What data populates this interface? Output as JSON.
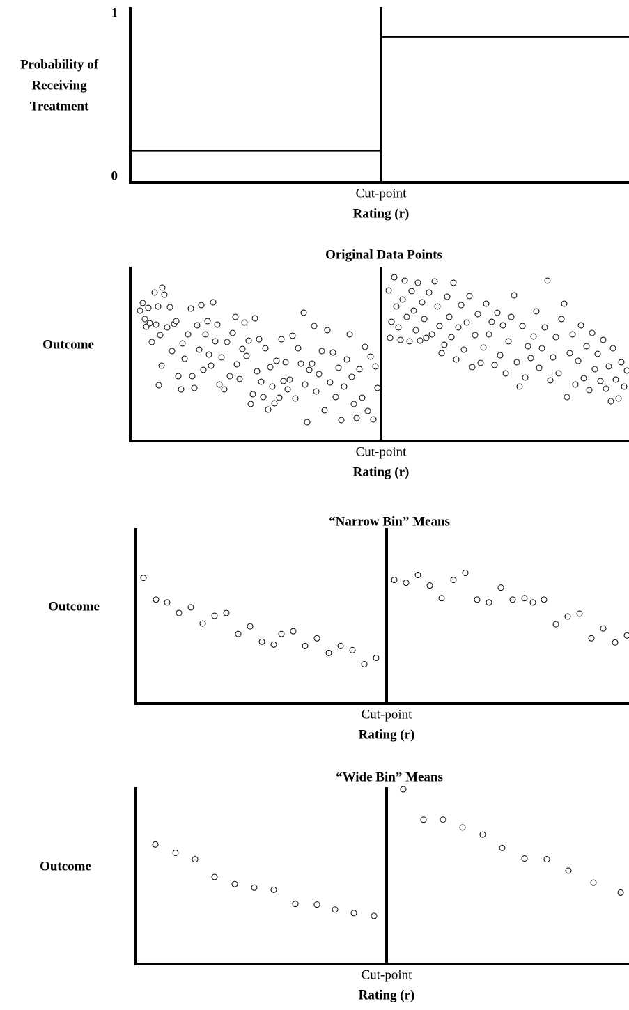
{
  "chart_data": [
    {
      "type": "step",
      "ylabel": [
        "Probability of",
        "Receiving",
        "Treatment"
      ],
      "annotation": "Cut-point",
      "xlabel": "Rating (r)",
      "xlim": [
        0,
        720
      ],
      "cutpoint": 360,
      "ylim": [
        0,
        1
      ],
      "yticks": [
        0,
        1
      ],
      "values": [
        0.18,
        0.83
      ],
      "color": "#000000"
    },
    {
      "type": "scatter",
      "title": "Original Data Points",
      "ylabel": [
        "Outcome"
      ],
      "annotation": "Cut-point",
      "xlabel": "Rating (r)",
      "xlim": [
        0,
        720
      ],
      "cutpoint": 360,
      "ylim": [
        0,
        250
      ],
      "color": "#000000",
      "x": [
        14,
        18,
        21,
        23,
        26,
        28,
        31,
        35,
        37,
        40,
        43,
        46,
        49,
        41,
        45,
        53,
        57,
        60,
        63,
        66,
        69,
        73,
        75,
        78,
        83,
        87,
        89,
        92,
        96,
        99,
        102,
        105,
        108,
        111,
        113,
        116,
        119,
        122,
        125,
        128,
        131,
        135,
        139,
        143,
        147,
        151,
        153,
        157,
        161,
        164,
        167,
        170,
        173,
        176,
        179,
        182,
        185,
        188,
        191,
        194,
        198,
        201,
        204,
        207,
        210,
        214,
        217,
        220,
        223,
        226,
        229,
        233,
        237,
        241,
        245,
        249,
        251,
        254,
        257,
        261,
        264,
        267,
        271,
        275,
        279,
        283,
        287,
        291,
        295,
        299,
        303,
        307,
        311,
        315,
        318,
        321,
        325,
        329,
        333,
        337,
        341,
        345,
        349,
        352,
        355,
        371,
        373,
        375,
        379,
        382,
        385,
        388,
        391,
        394,
        397,
        401,
        404,
        407,
        410,
        413,
        416,
        419,
        422,
        425,
        429,
        433,
        437,
        441,
        444,
        447,
        451,
        455,
        458,
        461,
        464,
        468,
        471,
        475,
        479,
        483,
        487,
        491,
        495,
        499,
        503,
        507,
        511,
        515,
        519,
        523,
        527,
        531,
        535,
        539,
        543,
        547,
        551,
        555,
        559,
        563,
        567,
        571,
        575,
        579,
        583,
        587,
        591,
        595,
        599,
        603,
        607,
        611,
        615,
        619,
        623,
        627,
        631,
        635,
        639,
        643,
        647,
        651,
        655,
        659,
        663,
        667,
        671,
        675,
        679,
        683,
        687,
        690,
        693,
        697,
        701,
        705,
        709,
        713
      ],
      "values": [
        187,
        198,
        175,
        164,
        191,
        169,
        142,
        213,
        167,
        193,
        152,
        220,
        210,
        80,
        108,
        163,
        192,
        129,
        168,
        172,
        93,
        74,
        140,
        118,
        153,
        190,
        93,
        76,
        166,
        131,
        195,
        102,
        153,
        172,
        124,
        108,
        199,
        143,
        167,
        81,
        120,
        74,
        142,
        93,
        155,
        178,
        110,
        89,
        132,
        170,
        122,
        144,
        53,
        67,
        176,
        100,
        146,
        85,
        63,
        133,
        45,
        106,
        78,
        54,
        115,
        62,
        146,
        86,
        113,
        74,
        88,
        151,
        61,
        133,
        111,
        184,
        81,
        27,
        102,
        111,
        165,
        71,
        96,
        129,
        44,
        159,
        84,
        127,
        63,
        105,
        30,
        78,
        117,
        153,
        92,
        53,
        33,
        103,
        62,
        135,
        43,
        121,
        31,
        107,
        76,
        216,
        148,
        171,
        235,
        193,
        163,
        145,
        203,
        230,
        178,
        143,
        215,
        187,
        159,
        227,
        144,
        199,
        175,
        148,
        213,
        153,
        229,
        193,
        165,
        126,
        138,
        207,
        178,
        149,
        227,
        117,
        163,
        195,
        131,
        170,
        208,
        106,
        152,
        182,
        112,
        134,
        197,
        153,
        171,
        109,
        184,
        123,
        166,
        97,
        143,
        178,
        209,
        113,
        78,
        165,
        91,
        136,
        119,
        150,
        186,
        105,
        133,
        163,
        230,
        87,
        120,
        149,
        97,
        175,
        197,
        63,
        126,
        153,
        81,
        115,
        166,
        90,
        136,
        73,
        155,
        103,
        125,
        86,
        145,
        75,
        107,
        57,
        133,
        88,
        61,
        113,
        78,
        101
      ]
    },
    {
      "type": "scatter",
      "title": "“Narrow Bin” Means",
      "ylabel": [
        "Outcome"
      ],
      "annotation": "Cut-point",
      "xlabel": "Rating (r)",
      "xlim": [
        0,
        720
      ],
      "cutpoint": 360,
      "ylim": [
        0,
        250
      ],
      "color": "#000000",
      "x": [
        11,
        29,
        45,
        62,
        79,
        96,
        113,
        130,
        147,
        164,
        181,
        198,
        209,
        226,
        243,
        260,
        277,
        294,
        311,
        328,
        345,
        371,
        388,
        405,
        422,
        439,
        456,
        473,
        490,
        507,
        524,
        541,
        558,
        570,
        586,
        603,
        620,
        637,
        654,
        671,
        688,
        705
      ],
      "values": [
        179,
        148,
        144,
        129,
        137,
        114,
        125,
        129,
        99,
        110,
        88,
        84,
        99,
        103,
        82,
        93,
        72,
        82,
        76,
        56,
        65,
        176,
        172,
        183,
        168,
        150,
        176,
        186,
        148,
        144,
        165,
        148,
        150,
        144,
        148,
        113,
        124,
        128,
        93,
        107,
        87,
        97
      ]
    },
    {
      "type": "scatter",
      "title": "“Wide Bin” Means",
      "ylabel": [
        "Outcome"
      ],
      "annotation": "Cut-point",
      "xlabel": "Rating (r)",
      "xlim": [
        0,
        720
      ],
      "cutpoint": 360,
      "ylim": [
        0,
        250
      ],
      "color": "#000000",
      "x": [
        28,
        57,
        85,
        113,
        142,
        170,
        198,
        229,
        260,
        286,
        313,
        342,
        384,
        413,
        441,
        469,
        498,
        526,
        558,
        590,
        621,
        657,
        696
      ],
      "values": [
        169,
        157,
        148,
        123,
        113,
        108,
        105,
        85,
        84,
        77,
        72,
        68,
        247,
        204,
        204,
        193,
        183,
        164,
        149,
        148,
        132,
        115,
        101
      ]
    }
  ]
}
